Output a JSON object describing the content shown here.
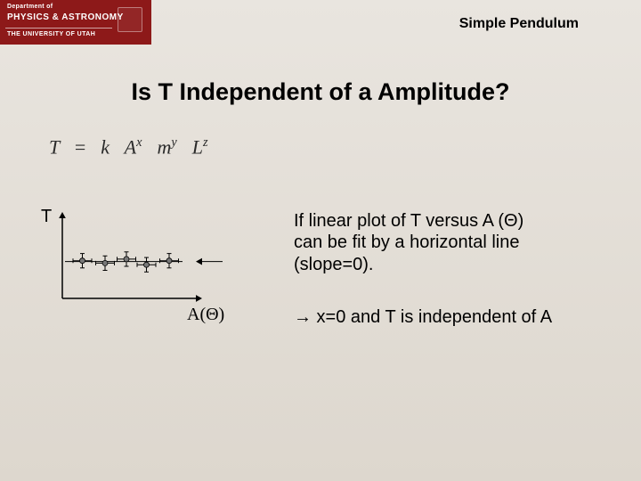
{
  "header": {
    "dept_line": "Department of",
    "sub_line": "PHYSICS & ASTRONOMY",
    "univ_line": "THE UNIVERSITY OF UTAH",
    "band_color": "#8d1919"
  },
  "topic": "Simple Pendulum",
  "title": "Is T Independent of a Amplitude?",
  "formula": {
    "lhs": "T",
    "eq": "=",
    "k": "k",
    "A": "A",
    "x": "x",
    "m": "m",
    "y": "y",
    "L": "L",
    "z": "z"
  },
  "chart": {
    "type": "scatter",
    "y_label": "T",
    "x_label": "A(Θ)",
    "xlim": [
      0,
      100
    ],
    "ylim": [
      0,
      100
    ],
    "axis_color": "#000000",
    "axis_width": 1.5,
    "arrowhead_size": 7,
    "points": [
      {
        "x": 15,
        "y": 47,
        "ex": 7,
        "ey": 9
      },
      {
        "x": 32,
        "y": 44,
        "ex": 7,
        "ey": 9
      },
      {
        "x": 48,
        "y": 49,
        "ex": 7,
        "ey": 9
      },
      {
        "x": 63,
        "y": 42,
        "ex": 7,
        "ey": 9
      },
      {
        "x": 80,
        "y": 47,
        "ex": 7,
        "ey": 9
      }
    ],
    "point_fill": "#777777",
    "point_stroke": "#000000",
    "point_radius": 3,
    "errorbar_color": "#000000",
    "errorbar_width": 1,
    "fit_line": {
      "y": 46,
      "color": "#000000",
      "width": 1
    },
    "callout_arrow": {
      "from_x": 160,
      "to_x": 100,
      "y": 46,
      "color": "#000000",
      "width": 1,
      "arrowhead_size": 7
    }
  },
  "description": {
    "line1": "If  linear plot of T versus A (Θ)",
    "line2": "can be fit by a horizontal line",
    "line3": "(slope=0)."
  },
  "conclusion": {
    "arrow": "→",
    "text": " x=0 and T is independent of A"
  },
  "colors": {
    "bg_top": "#e9e5df",
    "bg_bottom": "#ddd7ce",
    "text": "#000000"
  }
}
